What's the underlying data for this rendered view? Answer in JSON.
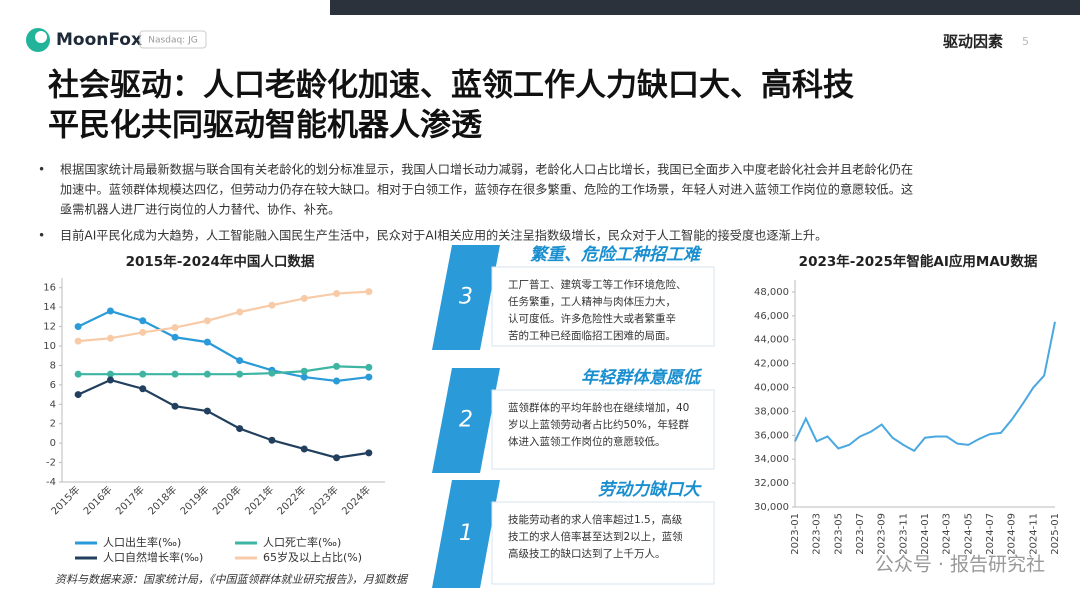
{
  "header": {
    "logo": "MoonFox",
    "ticker": "Nasdaq: JG",
    "section": "驱动因素",
    "page": "5"
  },
  "title_lines": [
    "社会驱动：人口老龄化加速、蓝领工作人力缺口大、高科技",
    "平民化共同驱动智能机器人渗透"
  ],
  "bullets": [
    [
      "根据国家统计局最新数据与联合国有关老龄化的划分标准显示，我国人口增长动力减弱，老龄化人口占比增长，我国已全面步入中度老龄化社会并且老龄化仍在",
      "加速中。蓝领群体规模达四亿，但劳动力仍存在较大缺口。相对于白领工作，蓝领存在很多繁重、危险的工作场景，年轻人对进入蓝领工作岗位的意愿较低。这",
      "亟需机器人进厂进行岗位的人力替代、协作、补充。"
    ],
    [
      "目前AI平民化成为大趋势，人工智能融入国民生产生活中，民众对于AI相关应用的关注呈指数级增长，民众对于人工智能的接受度也逐渐上升。"
    ]
  ],
  "panels": [
    {
      "number": "3",
      "title": "繁重、危险工种招工难",
      "text_lines": [
        "工厂普工、建筑零工等工作环境危险、",
        "任务繁重，工人精神与肉体压力大，",
        "认可度低。许多危险性大或者繁重辛",
        "苦的工种已经面临招工困难的局面。"
      ]
    },
    {
      "number": "2",
      "title": "年轻群体意愿低",
      "text_lines": [
        "蓝领群体的平均年龄也在继续增加，40",
        "岁以上蓝领劳动者占比约50%，年轻群",
        "体进入蓝领工作岗位的意愿较低。"
      ]
    },
    {
      "number": "1",
      "title": "劳动力缺口大",
      "text_lines": [
        "技能劳动者的求人倍率超过1.5，高级",
        "技工的求人倍率甚至达到2以上，蓝领",
        "高级技工的缺口达到了上千万人。"
      ]
    }
  ],
  "source": "资料与数据来源：国家统计局，《中国蓝领群体就业研究报告》，月狐数据",
  "watermark": "公众号 · 报告研究社",
  "chart_data": [
    {
      "type": "line",
      "title": "2015年-2024年中国人口数据",
      "categories": [
        "2015年",
        "2016年",
        "2017年",
        "2018年",
        "2019年",
        "2020年",
        "2021年",
        "2022年",
        "2023年",
        "2024年"
      ],
      "series": [
        {
          "name": "人口出生率(‰)",
          "color": "#2a9ad8",
          "values": [
            12.0,
            13.6,
            12.6,
            10.9,
            10.4,
            8.5,
            7.5,
            6.8,
            6.4,
            6.8
          ]
        },
        {
          "name": "人口死亡率(‰)",
          "color": "#3db5a2",
          "values": [
            7.1,
            7.1,
            7.1,
            7.1,
            7.1,
            7.1,
            7.2,
            7.4,
            7.9,
            7.8
          ]
        },
        {
          "name": "人口自然增长率(‰)",
          "color": "#22405e",
          "values": [
            5.0,
            6.5,
            5.6,
            3.8,
            3.3,
            1.5,
            0.3,
            -0.6,
            -1.5,
            -1.0
          ]
        },
        {
          "name": "65岁及以上占比(%)",
          "color": "#f8cba8",
          "values": [
            10.5,
            10.8,
            11.4,
            11.9,
            12.6,
            13.5,
            14.2,
            14.9,
            15.4,
            15.6
          ]
        }
      ],
      "ylim": [
        -4,
        17
      ],
      "yticks": [
        -4,
        -2,
        0,
        2,
        4,
        6,
        8,
        10,
        12,
        14,
        16
      ],
      "grid": false
    },
    {
      "type": "line",
      "title": "2023年-2025年智能AI应用MAU数据",
      "categories": [
        "2023-01",
        null,
        "2023-03",
        null,
        "2023-05",
        null,
        "2023-07",
        null,
        "2023-09",
        null,
        "2023-11",
        null,
        "2024-01",
        null,
        "2024-03",
        null,
        "2024-05",
        null,
        "2024-07",
        null,
        "2024-09",
        null,
        "2024-11",
        null,
        "2025-01"
      ],
      "series": [
        {
          "name": null,
          "color": "#4aa8e0",
          "values": [
            35500,
            37400,
            35500,
            35900,
            34900,
            35200,
            35900,
            36300,
            36900,
            35800,
            35200,
            34700,
            35800,
            35900,
            35900,
            35300,
            35200,
            35700,
            36100,
            36200,
            37300,
            38600,
            40000,
            41000,
            45500
          ]
        }
      ],
      "ylim": [
        30000,
        49000
      ],
      "yticks": [
        {
          "value": 30000,
          "label": "30,000"
        },
        {
          "value": 32000,
          "label": "32,000"
        },
        {
          "value": 34000,
          "label": "34,000"
        },
        {
          "value": 36000,
          "label": "36,000"
        },
        {
          "value": 38000,
          "label": "38,000"
        },
        {
          "value": 40000,
          "label": "40,000"
        },
        {
          "value": 42000,
          "label": "42,000"
        },
        {
          "value": 44000,
          "label": "44,000"
        },
        {
          "value": 46000,
          "label": "46,000"
        },
        {
          "value": 48000,
          "label": "48,000"
        }
      ],
      "grid": false
    }
  ]
}
